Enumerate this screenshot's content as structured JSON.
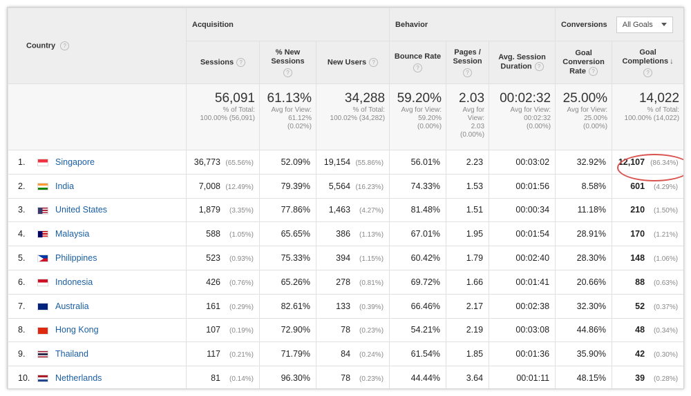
{
  "header": {
    "country": "Country",
    "acquisition": "Acquisition",
    "behavior": "Behavior",
    "conversions": "Conversions",
    "goal_select": "All Goals",
    "help": "?",
    "columns": {
      "sessions": "Sessions",
      "new_sessions_1": "% New",
      "new_sessions_2": "Sessions",
      "new_users": "New Users",
      "bounce_rate": "Bounce Rate",
      "pages_1": "Pages /",
      "pages_2": "Session",
      "avg_1": "Avg. Session",
      "avg_2": "Duration",
      "gcr_1": "Goal",
      "gcr_2": "Conversion",
      "gcr_3": "Rate",
      "gc_1": "Goal",
      "gc_2": "Completions"
    }
  },
  "totals": {
    "sessions": {
      "big": "56,091",
      "l1": "% of Total:",
      "l2": "100.00% (56,091)"
    },
    "new_sessions": {
      "big": "61.13%",
      "l1": "Avg for View:",
      "l2": "61.12%",
      "l3": "(0.02%)"
    },
    "new_users": {
      "big": "34,288",
      "l1": "% of Total:",
      "l2": "100.02% (34,282)"
    },
    "bounce_rate": {
      "big": "59.20%",
      "l1": "Avg for View:",
      "l2": "59.20%",
      "l3": "(0.00%)"
    },
    "pages": {
      "big": "2.03",
      "l1": "Avg for",
      "l2": "View:",
      "l3": "2.03",
      "l4": "(0.00%)"
    },
    "avg_duration": {
      "big": "00:02:32",
      "l1": "Avg for View:",
      "l2": "00:02:32",
      "l3": "(0.00%)"
    },
    "gcr": {
      "big": "25.00%",
      "l1": "Avg for View:",
      "l2": "25.00%",
      "l3": "(0.00%)"
    },
    "gc": {
      "big": "14,022",
      "l1": "% of Total:",
      "l2": "100.00% (14,022)"
    }
  },
  "rows": [
    {
      "idx": "1.",
      "flag": "sg",
      "country": "Singapore",
      "sessions": "36,773",
      "sessions_pct": "(65.56%)",
      "new_sessions": "52.09%",
      "new_users": "19,154",
      "new_users_pct": "(55.86%)",
      "bounce": "56.01%",
      "pages": "2.23",
      "duration": "00:03:02",
      "gcr": "32.92%",
      "gc": "12,107",
      "gc_pct": "(86.34%)"
    },
    {
      "idx": "2.",
      "flag": "in",
      "country": "India",
      "sessions": "7,008",
      "sessions_pct": "(12.49%)",
      "new_sessions": "79.39%",
      "new_users": "5,564",
      "new_users_pct": "(16.23%)",
      "bounce": "74.33%",
      "pages": "1.53",
      "duration": "00:01:56",
      "gcr": "8.58%",
      "gc": "601",
      "gc_pct": "(4.29%)"
    },
    {
      "idx": "3.",
      "flag": "us",
      "country": "United States",
      "sessions": "1,879",
      "sessions_pct": "(3.35%)",
      "new_sessions": "77.86%",
      "new_users": "1,463",
      "new_users_pct": "(4.27%)",
      "bounce": "81.48%",
      "pages": "1.51",
      "duration": "00:00:34",
      "gcr": "11.18%",
      "gc": "210",
      "gc_pct": "(1.50%)"
    },
    {
      "idx": "4.",
      "flag": "my",
      "country": "Malaysia",
      "sessions": "588",
      "sessions_pct": "(1.05%)",
      "new_sessions": "65.65%",
      "new_users": "386",
      "new_users_pct": "(1.13%)",
      "bounce": "67.01%",
      "pages": "1.95",
      "duration": "00:01:54",
      "gcr": "28.91%",
      "gc": "170",
      "gc_pct": "(1.21%)"
    },
    {
      "idx": "5.",
      "flag": "ph",
      "country": "Philippines",
      "sessions": "523",
      "sessions_pct": "(0.93%)",
      "new_sessions": "75.33%",
      "new_users": "394",
      "new_users_pct": "(1.15%)",
      "bounce": "60.42%",
      "pages": "1.79",
      "duration": "00:02:40",
      "gcr": "28.30%",
      "gc": "148",
      "gc_pct": "(1.06%)"
    },
    {
      "idx": "6.",
      "flag": "id",
      "country": "Indonesia",
      "sessions": "426",
      "sessions_pct": "(0.76%)",
      "new_sessions": "65.26%",
      "new_users": "278",
      "new_users_pct": "(0.81%)",
      "bounce": "69.72%",
      "pages": "1.66",
      "duration": "00:01:41",
      "gcr": "20.66%",
      "gc": "88",
      "gc_pct": "(0.63%)"
    },
    {
      "idx": "7.",
      "flag": "au",
      "country": "Australia",
      "sessions": "161",
      "sessions_pct": "(0.29%)",
      "new_sessions": "82.61%",
      "new_users": "133",
      "new_users_pct": "(0.39%)",
      "bounce": "66.46%",
      "pages": "2.17",
      "duration": "00:02:38",
      "gcr": "32.30%",
      "gc": "52",
      "gc_pct": "(0.37%)"
    },
    {
      "idx": "8.",
      "flag": "hk",
      "country": "Hong Kong",
      "sessions": "107",
      "sessions_pct": "(0.19%)",
      "new_sessions": "72.90%",
      "new_users": "78",
      "new_users_pct": "(0.23%)",
      "bounce": "54.21%",
      "pages": "2.19",
      "duration": "00:03:08",
      "gcr": "44.86%",
      "gc": "48",
      "gc_pct": "(0.34%)"
    },
    {
      "idx": "9.",
      "flag": "th",
      "country": "Thailand",
      "sessions": "117",
      "sessions_pct": "(0.21%)",
      "new_sessions": "71.79%",
      "new_users": "84",
      "new_users_pct": "(0.24%)",
      "bounce": "61.54%",
      "pages": "1.85",
      "duration": "00:01:36",
      "gcr": "35.90%",
      "gc": "42",
      "gc_pct": "(0.30%)"
    },
    {
      "idx": "10.",
      "flag": "nl",
      "country": "Netherlands",
      "sessions": "81",
      "sessions_pct": "(0.14%)",
      "new_sessions": "96.30%",
      "new_users": "78",
      "new_users_pct": "(0.23%)",
      "bounce": "44.44%",
      "pages": "3.64",
      "duration": "00:01:11",
      "gcr": "48.15%",
      "gc": "39",
      "gc_pct": "(0.28%)"
    }
  ],
  "highlight_color": "#d9534f"
}
